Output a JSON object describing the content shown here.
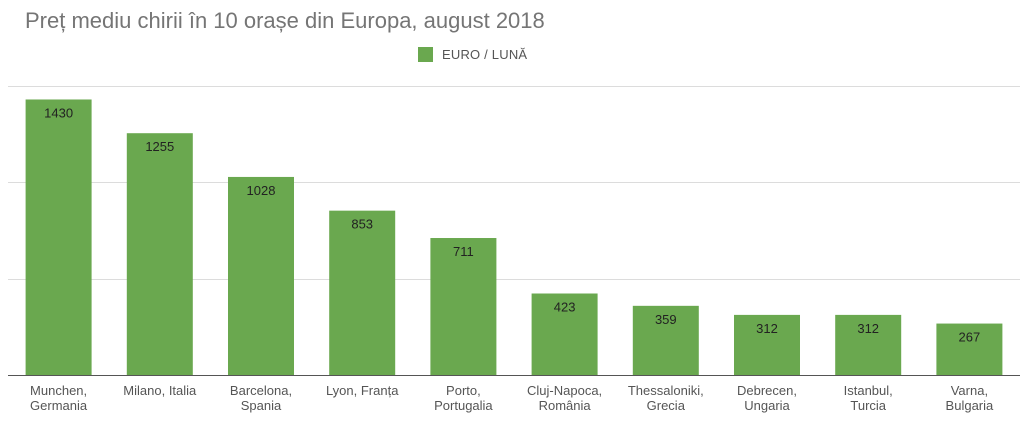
{
  "title": "Preț mediu chirii în 10 orașe din Europa, august 2018",
  "colors": {
    "bar": "#6aa84f",
    "grid": "#dcdcdc",
    "axis": "#555555"
  },
  "chart_data": {
    "type": "bar",
    "title": "Preț mediu chirii în 10 orașe din Europa, august 2018",
    "categories": [
      [
        "Munchen,",
        "Germania"
      ],
      [
        "Milano, Italia"
      ],
      [
        "Barcelona,",
        "Spania"
      ],
      [
        "Lyon, Franța"
      ],
      [
        "Porto,",
        "Portugalia"
      ],
      [
        "Cluj-Napoca,",
        "România"
      ],
      [
        "Thessaloniki,",
        "Grecia"
      ],
      [
        "Debrecen,",
        "Ungaria"
      ],
      [
        "Istanbul,",
        "Turcia"
      ],
      [
        "Varna,",
        "Bulgaria"
      ]
    ],
    "series": [
      {
        "name": "EURO / LUNĂ",
        "values": [
          1430,
          1255,
          1028,
          853,
          711,
          423,
          359,
          312,
          312,
          267
        ]
      }
    ],
    "data_labels": true,
    "ylim": [
      0,
      1500
    ],
    "gridlines": [
      500,
      1000,
      1500
    ],
    "legend_position": "top-center",
    "xlabel": "",
    "ylabel": ""
  }
}
